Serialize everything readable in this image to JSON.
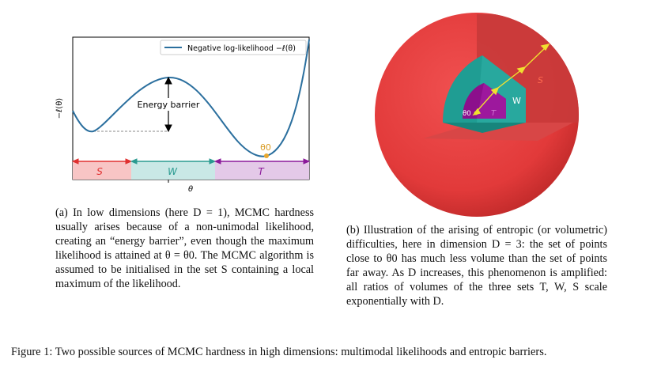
{
  "figure_a": {
    "legend": "Negative log-likelihood −ℓ(θ)",
    "ylabel": "−ℓ(θ)",
    "xlabel": "θ",
    "barrier_label": "Energy barrier",
    "theta0_label": "θ0",
    "regions": [
      {
        "name": "S",
        "color": "#f8c5c5",
        "line": "#e03030"
      },
      {
        "name": "W",
        "color": "#c9e8e6",
        "line": "#2a9a90"
      },
      {
        "name": "T",
        "color": "#e4c9e8",
        "line": "#8b1a9a"
      }
    ],
    "caption": "(a) In low dimensions (here D = 1), MCMC hardness usually arises because of a non-unimodal likelihood, creating an “energy barrier”, even though the maximum likelihood is attained at θ = θ0. The MCMC algorithm is assumed to be initialised in the set S containing a local maximum of the likelihood."
  },
  "figure_b": {
    "labels": {
      "theta0": "θ0",
      "T": "T",
      "W": "W",
      "S": "S"
    },
    "colors": {
      "outer": "#e8403f",
      "middle": "#1f9d93",
      "inner": "#8c0f8c",
      "arrows": "#f0e030"
    },
    "caption": "(b) Illustration of the arising of entropic (or volumetric) difficulties, here in dimension D = 3: the set of points close to θ0 has much less volume than the set of points far away. As D increases, this phenomenon is amplified: all ratios of volumes of the three sets T, W, S scale exponentially with D."
  },
  "figure_caption": "Figure 1: Two possible sources of MCMC hardness in high dimensions: multimodal likelihoods and entropic barriers."
}
